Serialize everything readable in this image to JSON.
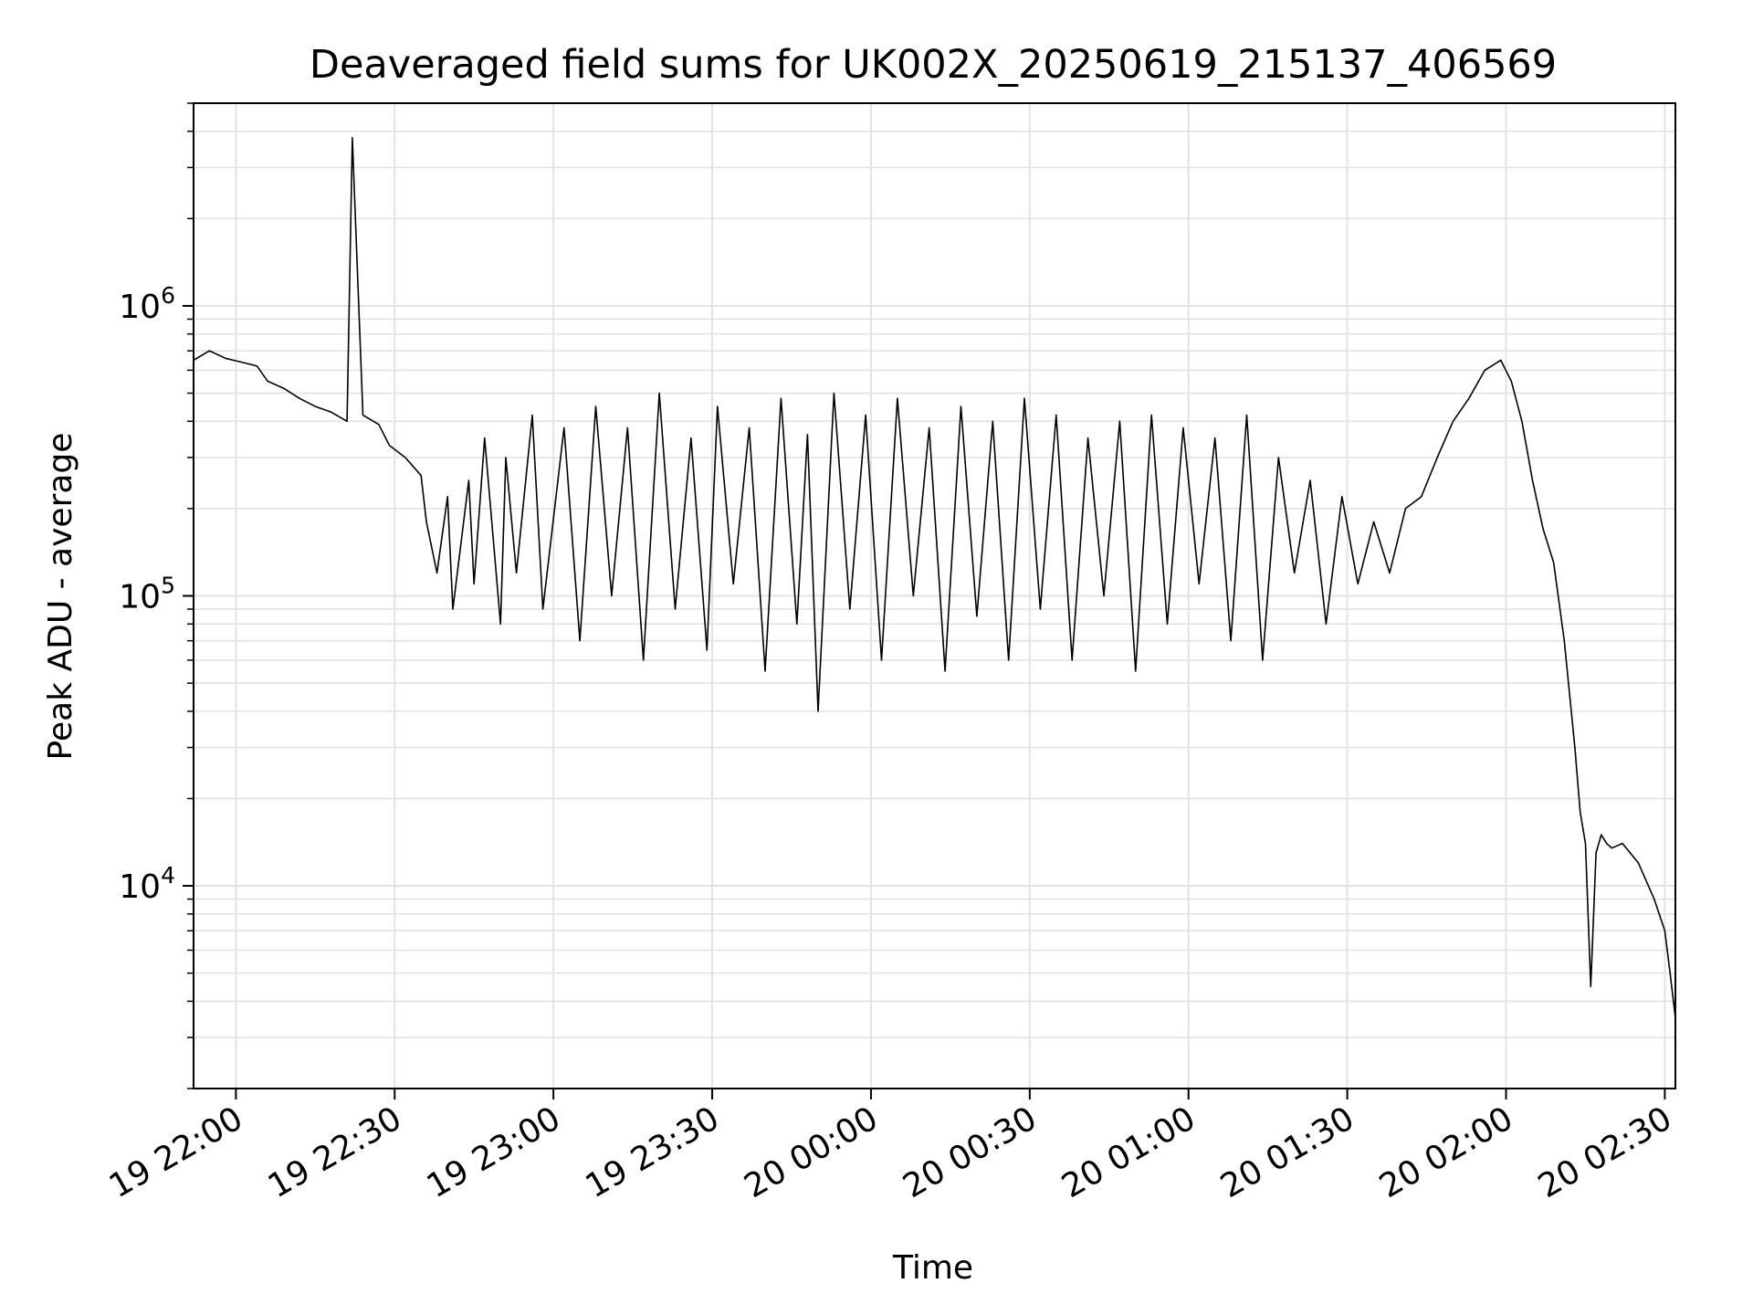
{
  "chart_data": {
    "type": "line",
    "title": "Deaveraged field sums for UK002X_20250619_215137_406569",
    "xlabel": "Time",
    "ylabel": "Peak ADU - average",
    "y_scale": "log",
    "xlim": [
      "19 21:52",
      "20 02:32"
    ],
    "ylim": [
      2000,
      5000000
    ],
    "grid": true,
    "line_color": "#000000",
    "x_ticks": [
      {
        "value": "19 22:00",
        "label": "19 22:00"
      },
      {
        "value": "19 22:30",
        "label": "19 22:30"
      },
      {
        "value": "19 23:00",
        "label": "19 23:00"
      },
      {
        "value": "19 23:30",
        "label": "19 23:30"
      },
      {
        "value": "20 00:00",
        "label": "20 00:00"
      },
      {
        "value": "20 00:30",
        "label": "20 00:30"
      },
      {
        "value": "20 01:00",
        "label": "20 01:00"
      },
      {
        "value": "20 01:30",
        "label": "20 01:30"
      },
      {
        "value": "20 02:00",
        "label": "20 02:00"
      },
      {
        "value": "20 02:30",
        "label": "20 02:30"
      }
    ],
    "y_ticks": [
      {
        "value": 10000,
        "base": "10",
        "exp": "4"
      },
      {
        "value": 100000,
        "base": "10",
        "exp": "5"
      },
      {
        "value": 1000000,
        "base": "10",
        "exp": "6"
      }
    ],
    "series": [
      {
        "x": [
          "19 21:52",
          "19 21:55",
          "19 21:58",
          "19 22:01",
          "19 22:04",
          "19 22:06",
          "19 22:09",
          "19 22:12",
          "19 22:15",
          "19 22:18",
          "19 22:21",
          "19 22:22",
          "19 22:24",
          "19 22:27",
          "19 22:29",
          "19 22:32",
          "19 22:35",
          "19 22:36",
          "19 22:38",
          "19 22:40",
          "19 22:41",
          "19 22:44",
          "19 22:45",
          "19 22:47",
          "19 22:50",
          "19 22:51",
          "19 22:53",
          "19 22:56",
          "19 22:58",
          "19 23:02",
          "19 23:05",
          "19 23:08",
          "19 23:11",
          "19 23:14",
          "19 23:17",
          "19 23:20",
          "19 23:23",
          "19 23:26",
          "19 23:29",
          "19 23:31",
          "19 23:34",
          "19 23:37",
          "19 23:40",
          "19 23:43",
          "19 23:46",
          "19 23:48",
          "19 23:50",
          "19 23:53",
          "19 23:56",
          "19 23:59",
          "20 00:02",
          "20 00:05",
          "20 00:08",
          "20 00:11",
          "20 00:14",
          "20 00:17",
          "20 00:20",
          "20 00:23",
          "20 00:26",
          "20 00:29",
          "20 00:32",
          "20 00:35",
          "20 00:38",
          "20 00:41",
          "20 00:44",
          "20 00:47",
          "20 00:50",
          "20 00:53",
          "20 00:56",
          "20 00:59",
          "20 01:02",
          "20 01:05",
          "20 01:08",
          "20 01:11",
          "20 01:14",
          "20 01:17",
          "20 01:20",
          "20 01:23",
          "20 01:26",
          "20 01:29",
          "20 01:32",
          "20 01:35",
          "20 01:38",
          "20 01:41",
          "20 01:44",
          "20 01:47",
          "20 01:50",
          "20 01:53",
          "20 01:56",
          "20 01:59",
          "20 02:01",
          "20 02:03",
          "20 02:05",
          "20 02:07",
          "20 02:09",
          "20 02:11",
          "20 02:13",
          "20 02:14",
          "20 02:15",
          "20 02:16",
          "20 02:17",
          "20 02:18",
          "20 02:19",
          "20 02:20",
          "20 02:22",
          "20 02:25",
          "20 02:28",
          "20 02:30",
          "20 02:31",
          "20 02:32"
        ],
        "y": [
          650000,
          700000,
          660000,
          640000,
          620000,
          550000,
          520000,
          480000,
          450000,
          430000,
          400000,
          3800000,
          420000,
          390000,
          330000,
          300000,
          260000,
          180000,
          120000,
          220000,
          90000,
          250000,
          110000,
          350000,
          80000,
          300000,
          120000,
          420000,
          90000,
          380000,
          70000,
          450000,
          100000,
          380000,
          60000,
          500000,
          90000,
          350000,
          65000,
          450000,
          110000,
          380000,
          55000,
          480000,
          80000,
          360000,
          40000,
          500000,
          90000,
          420000,
          60000,
          480000,
          100000,
          380000,
          55000,
          450000,
          85000,
          400000,
          60000,
          480000,
          90000,
          420000,
          60000,
          350000,
          100000,
          400000,
          55000,
          420000,
          80000,
          380000,
          110000,
          350000,
          70000,
          420000,
          60000,
          300000,
          120000,
          250000,
          80000,
          220000,
          110000,
          180000,
          120000,
          200000,
          220000,
          300000,
          400000,
          480000,
          600000,
          650000,
          550000,
          400000,
          250000,
          170000,
          130000,
          70000,
          30000,
          18000,
          14000,
          4500,
          13000,
          15000,
          14000,
          13500,
          14000,
          12000,
          9000,
          7000,
          5000,
          3500
        ]
      }
    ]
  }
}
